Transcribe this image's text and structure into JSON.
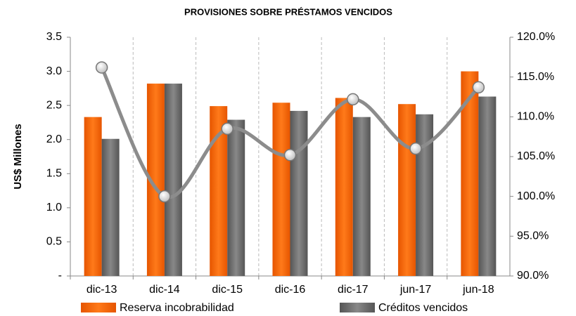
{
  "chart_data": {
    "type": "bar_line",
    "title": "PROVISIONES SOBRE PRÉSTAMOS VENCIDOS",
    "y_label": "US$ Millones",
    "categories": [
      "dic-13",
      "dic-14",
      "dic-15",
      "dic-16",
      "dic-17",
      "jun-17",
      "jun-18"
    ],
    "series": [
      {
        "name": "Reserva incobrabilidad",
        "color": "#f26b0f",
        "values": [
          2.33,
          2.82,
          2.49,
          2.54,
          2.61,
          2.52,
          3.0
        ]
      },
      {
        "name": "Créditos vencidos",
        "color": "#6b6b6b",
        "values": [
          2.01,
          2.82,
          2.29,
          2.42,
          2.33,
          2.37,
          2.63
        ]
      },
      {
        "type": "line",
        "axis": "y2",
        "color": "#8c8c8c",
        "values": [
          116.2,
          100.0,
          108.5,
          105.2,
          112.2,
          106.0,
          113.7
        ]
      }
    ],
    "ylim": [
      0,
      3.5
    ],
    "yticks": [
      {
        "value": 0,
        "label": "-"
      },
      0.5,
      {
        "value": 1,
        "label": "1.0"
      },
      1.5,
      {
        "value": 2,
        "label": "2.0"
      },
      2.5,
      {
        "value": 3,
        "label": "3.0"
      },
      3.5
    ],
    "y2lim": [
      90,
      120
    ],
    "y2ticks": [
      {
        "value": 90,
        "label": "90.0%"
      },
      {
        "value": 95,
        "label": "95.0%"
      },
      {
        "value": 100,
        "label": "100.0%"
      },
      {
        "value": 105,
        "label": "105.0%"
      },
      {
        "value": 110,
        "label": "110.0%"
      },
      {
        "value": 115,
        "label": "115.0%"
      },
      {
        "value": 120,
        "label": "120.0%"
      }
    ],
    "legend": "bottom"
  }
}
